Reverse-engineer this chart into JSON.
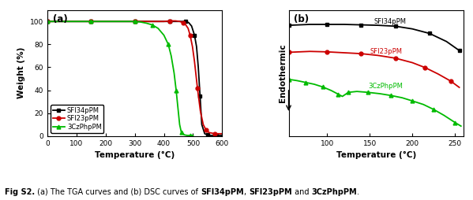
{
  "tga": {
    "sfi34_x": [
      0,
      50,
      100,
      150,
      200,
      250,
      300,
      350,
      400,
      420,
      440,
      460,
      475,
      485,
      495,
      505,
      512,
      518,
      524,
      530,
      540,
      550,
      560,
      570,
      580,
      590,
      600
    ],
    "sfi34_y": [
      100,
      100,
      100,
      100,
      100,
      100,
      100,
      100,
      100,
      100,
      100,
      100,
      100,
      99,
      96,
      88,
      78,
      60,
      35,
      10,
      2,
      1,
      0.5,
      0.5,
      0.5,
      0.5,
      0.5
    ],
    "sfi23_x": [
      0,
      50,
      100,
      150,
      200,
      250,
      300,
      350,
      400,
      420,
      440,
      455,
      465,
      475,
      483,
      490,
      498,
      505,
      515,
      525,
      535,
      545,
      555,
      565,
      575,
      590,
      600
    ],
    "sfi23_y": [
      100,
      100,
      100,
      100,
      100,
      100,
      100,
      100,
      100,
      100.5,
      100.5,
      100,
      99,
      97,
      94,
      88,
      78,
      65,
      42,
      22,
      10,
      5,
      3,
      2.5,
      2,
      2,
      2
    ],
    "czph_x": [
      0,
      50,
      100,
      150,
      200,
      250,
      300,
      320,
      340,
      360,
      380,
      400,
      415,
      425,
      435,
      442,
      448,
      454,
      460,
      470,
      480,
      490,
      500
    ],
    "czph_y": [
      100,
      100,
      100,
      100,
      100,
      100,
      100,
      99.5,
      98.5,
      97,
      94,
      88,
      80,
      70,
      55,
      40,
      25,
      10,
      3,
      1,
      0.5,
      0.5,
      0.5
    ],
    "xlabel": "Temperature (°C)",
    "ylabel": "Weight (%)",
    "xlim": [
      0,
      600
    ],
    "ylim": [
      0,
      110
    ],
    "xticks": [
      0,
      100,
      200,
      300,
      400,
      500,
      600
    ],
    "yticks": [
      0,
      20,
      40,
      60,
      80,
      100
    ]
  },
  "dsc": {
    "sfi34_x": [
      55,
      80,
      100,
      120,
      140,
      160,
      180,
      200,
      220,
      240,
      255
    ],
    "sfi34_y": [
      0.88,
      0.89,
      0.89,
      0.89,
      0.885,
      0.88,
      0.87,
      0.84,
      0.79,
      0.7,
      0.6
    ],
    "sfi23_x": [
      55,
      80,
      100,
      120,
      140,
      160,
      180,
      200,
      215,
      230,
      245,
      255
    ],
    "sfi23_y": [
      0.58,
      0.59,
      0.585,
      0.575,
      0.565,
      0.545,
      0.515,
      0.465,
      0.41,
      0.34,
      0.26,
      0.19
    ],
    "czph_x": [
      55,
      65,
      75,
      85,
      95,
      105,
      113,
      118,
      125,
      135,
      148,
      162,
      175,
      188,
      200,
      213,
      225,
      237,
      250,
      257
    ],
    "czph_y": [
      0.28,
      0.265,
      0.245,
      0.225,
      0.195,
      0.155,
      0.115,
      0.09,
      0.135,
      0.145,
      0.135,
      0.12,
      0.1,
      0.075,
      0.04,
      0.0,
      -0.055,
      -0.12,
      -0.2,
      -0.24
    ],
    "xlabel": "Temperature (°C)",
    "ylabel": "Endothermic",
    "xlim": [
      55,
      260
    ],
    "ylim": [
      -0.35,
      1.05
    ],
    "xticks": [
      100,
      150,
      200,
      250
    ]
  },
  "colors": {
    "sfi34": "#000000",
    "sfi23": "#cc0000",
    "czph": "#00bb00"
  },
  "labels": {
    "sfi34": "SFI34pPM",
    "sfi23": "SFI23pPM",
    "czph": "3CzPhpPM"
  },
  "dsc_labels": {
    "sfi34_x": 155,
    "sfi34_y": 0.88,
    "sfi23_x": 150,
    "sfi23_y": 0.545,
    "czph_x": 148,
    "czph_y": 0.165
  },
  "panel_a_label": "(a)",
  "panel_b_label": "(b)"
}
